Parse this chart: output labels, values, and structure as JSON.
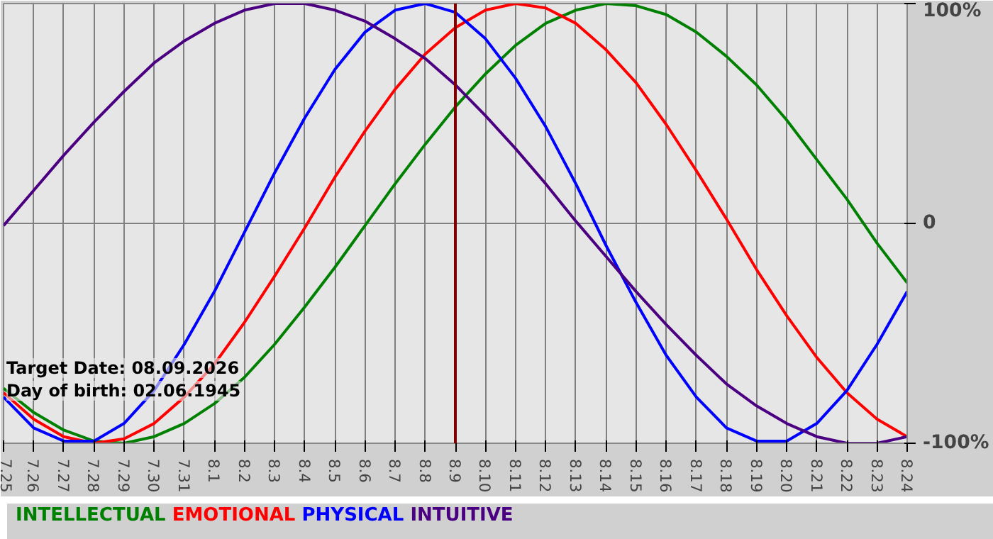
{
  "chart_data": {
    "type": "line",
    "categories": [
      "7.25",
      "7.26",
      "7.27",
      "7.28",
      "7.29",
      "7.30",
      "7.31",
      "8.1",
      "8.2",
      "8.3",
      "8.4",
      "8.5",
      "8.6",
      "8.7",
      "8.8",
      "8.9",
      "8.10",
      "8.11",
      "8.12",
      "8.13",
      "8.14",
      "8.15",
      "8.16",
      "8.17",
      "8.18",
      "8.19",
      "8.20",
      "8.21",
      "8.22",
      "8.23",
      "8.24"
    ],
    "ylim": [
      -100,
      100
    ],
    "yticks": [
      {
        "value": 100,
        "label": "100%"
      },
      0,
      {
        "value": -100,
        "label": "-100%"
      }
    ],
    "series": [
      {
        "name": "INTELLECTUAL",
        "color": "#008000",
        "values": [
          -75,
          -86,
          -94,
          -99,
          -100,
          -97,
          -91,
          -82,
          -70,
          -55,
          -38,
          -20,
          -1,
          18,
          36,
          53,
          68,
          81,
          91,
          97,
          100,
          99,
          95,
          87,
          76,
          63,
          47,
          29,
          11,
          -9,
          -27
        ]
      },
      {
        "name": "EMOTIONAL",
        "color": "#ff0000",
        "values": [
          -77,
          -89,
          -97,
          -100,
          -98,
          -91,
          -79,
          -64,
          -45,
          -24,
          -2,
          21,
          42,
          61,
          77,
          89,
          97,
          100,
          98,
          91,
          79,
          64,
          45,
          24,
          2,
          -21,
          -42,
          -61,
          -77,
          -89,
          -97
        ]
      },
      {
        "name": "PHYSICAL",
        "color": "#0000ff",
        "values": [
          -79,
          -93,
          -99,
          -99,
          -91,
          -76,
          -55,
          -31,
          -4,
          23,
          48,
          70,
          87,
          97,
          100,
          96,
          84,
          66,
          44,
          18,
          -10,
          -36,
          -60,
          -79,
          -93,
          -99,
          -99,
          -91,
          -76,
          -55,
          -31
        ]
      },
      {
        "name": "INTUITIVE",
        "color": "#4b0082",
        "values": [
          -1,
          15,
          31,
          46,
          60,
          73,
          83,
          91,
          97,
          100,
          100,
          97,
          92,
          84,
          75,
          63,
          49,
          34,
          18,
          1,
          -15,
          -31,
          -46,
          -60,
          -73,
          -83,
          -91,
          -97,
          -100,
          -100,
          -97
        ]
      }
    ],
    "ref_lines": [
      {
        "axis": "x",
        "value": "8.9",
        "color": "#800000"
      }
    ],
    "annotations": [
      "Target Date: 08.09.2026",
      "Day of birth: 02.06.1945"
    ],
    "grid": true,
    "legend": "bottom",
    "marker": "none",
    "line_style": "solid"
  }
}
